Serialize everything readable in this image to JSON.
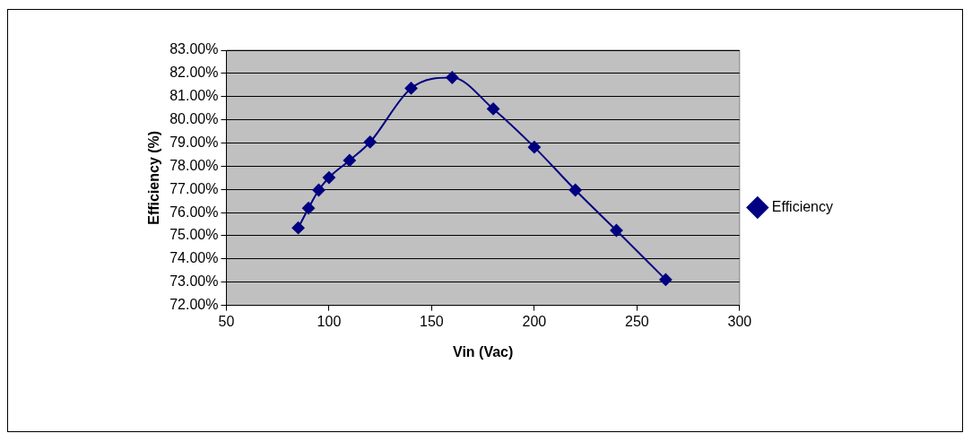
{
  "chart_data": {
    "type": "line",
    "xlabel": "Vin (Vac)",
    "ylabel": "Efficiency (%)",
    "x": [
      85,
      90,
      95,
      100,
      110,
      120,
      140,
      160,
      180,
      200,
      220,
      240,
      264
    ],
    "series": [
      {
        "name": "Efficiency",
        "color": "#000080",
        "values": [
          75.34,
          76.19,
          76.97,
          77.51,
          78.25,
          79.04,
          81.36,
          81.82,
          80.47,
          78.82,
          76.97,
          75.23,
          73.11
        ]
      }
    ],
    "xlim": [
      50,
      300
    ],
    "xticks": [
      50,
      100,
      150,
      200,
      250,
      300
    ],
    "ylim": [
      72,
      83
    ],
    "yticks": [
      {
        "value": 72,
        "label": "72.00%"
      },
      {
        "value": 73,
        "label": "73.00%"
      },
      {
        "value": 74,
        "label": "74.00%"
      },
      {
        "value": 75,
        "label": "75.00%"
      },
      {
        "value": 76,
        "label": "76.00%"
      },
      {
        "value": 77,
        "label": "77.00%"
      },
      {
        "value": 78,
        "label": "78.00%"
      },
      {
        "value": 79,
        "label": "79.00%"
      },
      {
        "value": 80,
        "label": "80.00%"
      },
      {
        "value": 81,
        "label": "81.00%"
      },
      {
        "value": 82,
        "label": "82.00%"
      },
      {
        "value": 83,
        "label": "83.00%"
      }
    ],
    "grid": "y",
    "legend": "right",
    "marker": "diamond",
    "line_style": "solid"
  }
}
